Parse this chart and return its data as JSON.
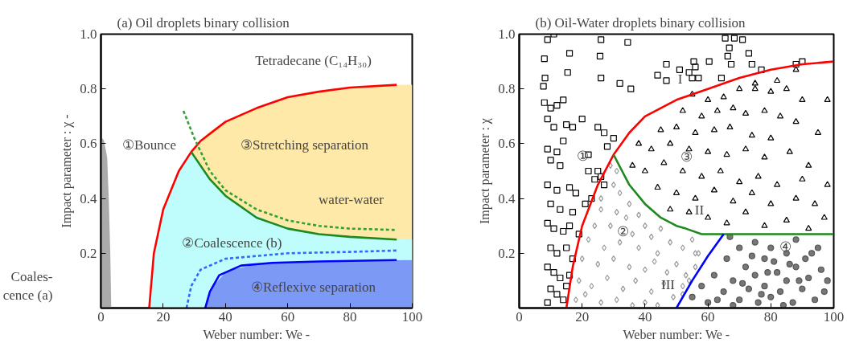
{
  "chart_data": [
    {
      "type": "area",
      "title": "(a) Oil droplets binary collision",
      "xlabel": "Weber number: We -",
      "ylabel": "Impact parameter : χ -",
      "xlim": [
        0,
        100
      ],
      "ylim": [
        0,
        1
      ],
      "xticks": [
        0,
        20,
        40,
        60,
        80,
        100
      ],
      "yticks": [
        0.2,
        0.4,
        0.6,
        0.8,
        {
          "value": 1,
          "label": "1.0"
        }
      ],
      "grid": false,
      "series": [
        {
          "color": "#aaaaaa",
          "x": [
            0,
            0.5,
            1,
            2,
            2.5,
            3,
            3.3
          ],
          "values": [
            0.6,
            0.62,
            0.61,
            0.55,
            0.4,
            0.2,
            0
          ]
        },
        {
          "color": "#ffe9a8",
          "x": [
            28.8,
            32,
            35,
            40,
            50,
            60,
            70,
            80,
            95,
            100
          ],
          "values": [
            0.567,
            0.61,
            0.645,
            0.68,
            0.73,
            0.77,
            0.79,
            0.805,
            0.815,
            0.815
          ]
        },
        {
          "color": "#bffcfc",
          "x": [
            15.5,
            17,
            20,
            25,
            28,
            29.5,
            31,
            33.5,
            37,
            42,
            45,
            55,
            65,
            75,
            87,
            100
          ],
          "values": [
            0,
            0.2,
            0.36,
            0.5,
            0.55,
            0.562,
            0.537,
            0.495,
            0.446,
            0.394,
            0.37,
            0.31,
            0.28,
            0.265,
            0.255,
            0.25
          ]
        },
        {
          "color": "#7b99f5",
          "x": [
            33.5,
            36,
            40,
            42,
            50,
            60,
            65,
            80,
            100
          ],
          "values": [
            0,
            0.08,
            0.13,
            0.14,
            0.16,
            0.167,
            0.168,
            0.172,
            0.175
          ]
        },
        {
          "type": "line",
          "color": "#ff0000",
          "line_style": "solid",
          "x": [
            15.5,
            17,
            20,
            25,
            29,
            32,
            40,
            50,
            60,
            70,
            80,
            95
          ],
          "values": [
            0,
            0.2,
            0.36,
            0.5,
            0.57,
            0.61,
            0.68,
            0.73,
            0.77,
            0.79,
            0.805,
            0.815
          ]
        },
        {
          "type": "line",
          "color": "#1e8a1e",
          "line_style": "solid",
          "x": [
            29,
            35,
            40,
            50,
            60,
            70,
            80,
            95
          ],
          "values": [
            0.57,
            0.47,
            0.41,
            0.33,
            0.29,
            0.27,
            0.26,
            0.25
          ]
        },
        {
          "type": "line",
          "color": "#33a033",
          "line_style": "dashed",
          "x": [
            26.5,
            30,
            35,
            40,
            50,
            60,
            70,
            80,
            95
          ],
          "values": [
            0.72,
            0.62,
            0.5,
            0.43,
            0.36,
            0.32,
            0.3,
            0.29,
            0.285
          ]
        },
        {
          "type": "line",
          "color": "#3366ff",
          "line_style": "dashed",
          "x": [
            27.5,
            29,
            32,
            40,
            50,
            60,
            80,
            95
          ],
          "values": [
            0,
            0.08,
            0.14,
            0.18,
            0.19,
            0.2,
            0.205,
            0.21
          ]
        },
        {
          "type": "line",
          "color": "#0000ff",
          "line_style": "solid",
          "x": [
            33.5,
            35,
            38,
            45,
            55,
            70,
            95
          ],
          "values": [
            0,
            0.06,
            0.12,
            0.155,
            0.165,
            0.17,
            0.175
          ]
        }
      ],
      "annotations": [
        "Tetradecane (C₁₄H₃₀)",
        "①Bounce",
        "③Stretching separation",
        "water-water",
        "②Coalescence (b)",
        "④Reflexive separation",
        "Coales-\ncence (a)"
      ]
    },
    {
      "type": "scatter",
      "title": "(b) Oil-Water droplets binary collision",
      "xlabel": "Weber number: We -",
      "ylabel": "Impact parameter : χ",
      "xlim": [
        0,
        100
      ],
      "ylim": [
        0,
        1
      ],
      "xticks": [
        0,
        20,
        40,
        60,
        80,
        100
      ],
      "yticks": [
        0.2,
        0.4,
        0.6,
        0.8,
        {
          "value": 1,
          "label": "1.0"
        }
      ],
      "grid": false,
      "series": [
        {
          "marker": "square",
          "color": "#000000",
          "x": [
            11,
            9,
            26,
            34.5,
            8,
            16,
            25.7,
            15.4,
            8.2,
            26,
            7.7,
            32,
            35.5,
            65.5,
            68.4,
            71,
            66.8,
            66.3,
            73,
            67.4,
            74,
            60.4,
            55.5,
            56,
            46.8,
            44,
            51,
            54,
            46.8,
            64.3,
            77,
            88,
            90,
            55,
            57,
            8,
            10,
            12,
            14,
            9,
            11,
            15,
            17,
            20,
            25,
            27,
            30,
            28,
            9,
            12,
            14,
            10,
            13,
            22,
            25,
            26,
            9,
            12,
            16,
            18,
            24,
            27,
            10,
            13,
            17,
            21,
            23,
            9,
            11,
            14,
            16,
            19,
            10,
            12,
            15,
            17,
            9,
            11,
            13,
            16,
            10,
            12,
            14,
            9,
            15,
            22
          ],
          "values": [
            1.0,
            0.98,
            0.98,
            0.97,
            0.91,
            0.93,
            0.92,
            0.86,
            0.84,
            0.84,
            0.81,
            0.82,
            0.8,
            0.985,
            0.985,
            0.98,
            0.95,
            0.92,
            0.93,
            0.89,
            0.89,
            0.9,
            0.9,
            0.88,
            0.89,
            0.85,
            0.87,
            0.86,
            0.83,
            0.84,
            0.87,
            0.89,
            0.9,
            0.84,
            0.84,
            0.75,
            0.73,
            0.74,
            0.76,
            0.69,
            0.66,
            0.67,
            0.66,
            0.69,
            0.66,
            0.64,
            0.62,
            0.59,
            0.58,
            0.57,
            0.61,
            0.54,
            0.52,
            0.56,
            0.5,
            0.48,
            0.45,
            0.43,
            0.44,
            0.42,
            0.47,
            0.45,
            0.38,
            0.36,
            0.35,
            0.38,
            0.4,
            0.31,
            0.29,
            0.28,
            0.3,
            0.27,
            0.22,
            0.2,
            0.22,
            0.18,
            0.15,
            0.13,
            0.11,
            0.12,
            0.07,
            0.05,
            0.03,
            0.02,
            0.08,
            0.5
          ]
        },
        {
          "marker": "diamond",
          "color": "#999999",
          "x": [
            29,
            31,
            30,
            32,
            26,
            35,
            26,
            31,
            38,
            24,
            29,
            34,
            36,
            40,
            42,
            45,
            22,
            27,
            32,
            38,
            44,
            48,
            52,
            55,
            57,
            20,
            25,
            30,
            35,
            40,
            43,
            47,
            50,
            53,
            56,
            19,
            23,
            28,
            33,
            37,
            42,
            46,
            49,
            18,
            21,
            26,
            31,
            36,
            40,
            44,
            52,
            52,
            54,
            56
          ],
          "values": [
            0.52,
            0.5,
            0.45,
            0.42,
            0.4,
            0.38,
            0.36,
            0.35,
            0.34,
            0.3,
            0.3,
            0.33,
            0.27,
            0.3,
            0.26,
            0.29,
            0.25,
            0.22,
            0.24,
            0.22,
            0.2,
            0.24,
            0.22,
            0.25,
            0.2,
            0.18,
            0.16,
            0.18,
            0.15,
            0.14,
            0.17,
            0.13,
            0.16,
            0.12,
            0.15,
            0.1,
            0.08,
            0.11,
            0.07,
            0.1,
            0.06,
            0.09,
            0.04,
            0.03,
            0.05,
            0.02,
            0.03,
            0.01,
            0.02,
            0.01,
            0.05,
            0.08,
            0.1,
            0.2
          ]
        },
        {
          "marker": "triangle",
          "color": "#000000",
          "x": [
            55,
            60,
            65,
            70,
            75,
            80,
            85,
            90,
            98,
            52,
            58,
            63,
            68,
            72,
            78,
            83,
            88,
            45,
            50,
            56,
            62,
            67,
            74,
            80,
            95,
            38,
            42,
            48,
            54,
            60,
            66,
            72,
            78,
            86,
            92,
            36,
            40,
            46,
            52,
            58,
            64,
            70,
            76,
            82,
            90,
            98,
            44,
            50,
            56,
            62,
            68,
            74,
            80,
            88,
            94,
            48,
            54,
            60,
            66,
            72,
            78,
            85,
            92,
            97,
            88,
            82,
            75
          ],
          "values": [
            0.78,
            0.76,
            0.77,
            0.8,
            0.8,
            0.79,
            0.8,
            0.76,
            0.76,
            0.72,
            0.7,
            0.72,
            0.73,
            0.71,
            0.72,
            0.7,
            0.68,
            0.65,
            0.66,
            0.64,
            0.65,
            0.66,
            0.63,
            0.62,
            0.64,
            0.6,
            0.58,
            0.6,
            0.58,
            0.57,
            0.56,
            0.58,
            0.55,
            0.57,
            0.52,
            0.52,
            0.5,
            0.53,
            0.5,
            0.48,
            0.5,
            0.46,
            0.48,
            0.45,
            0.47,
            0.45,
            0.44,
            0.42,
            0.4,
            0.43,
            0.39,
            0.42,
            0.38,
            0.4,
            0.38,
            0.36,
            0.35,
            0.33,
            0.31,
            0.35,
            0.3,
            0.32,
            0.29,
            0.33,
            0.87,
            0.83,
            0.82
          ]
        },
        {
          "marker": "circle",
          "color": "#555555",
          "x": [
            55,
            58,
            60,
            62,
            65,
            66,
            68,
            70,
            70,
            72,
            73,
            75,
            75,
            76,
            78,
            78,
            80,
            80,
            82,
            83,
            85,
            85,
            87,
            88,
            88,
            90,
            91,
            92,
            94,
            95,
            96,
            97,
            67,
            71,
            74,
            77,
            79,
            81,
            84,
            86,
            89,
            93,
            68,
            63,
            98
          ],
          "values": [
            0.04,
            0.08,
            0.02,
            0.12,
            0.06,
            0.18,
            0.1,
            0.03,
            0.22,
            0.15,
            0.07,
            0.24,
            0.12,
            0.02,
            0.18,
            0.08,
            0.04,
            0.22,
            0.13,
            0.06,
            0.2,
            0.1,
            0.02,
            0.15,
            0.25,
            0.07,
            0.18,
            0.11,
            0.03,
            0.22,
            0.14,
            0.06,
            0.26,
            0.09,
            0.19,
            0.05,
            0.13,
            0.17,
            0.01,
            0.16,
            0.1,
            0.2,
            0.01,
            0.03,
            0.1
          ]
        },
        {
          "type": "line",
          "color": "#ff0000",
          "line_style": "solid",
          "x": [
            15,
            17,
            20,
            25,
            30,
            35,
            40,
            50,
            60,
            70,
            80,
            90,
            100
          ],
          "values": [
            0,
            0.15,
            0.3,
            0.45,
            0.56,
            0.64,
            0.7,
            0.76,
            0.8,
            0.84,
            0.87,
            0.89,
            0.9
          ]
        },
        {
          "type": "line",
          "color": "#1e8a1e",
          "line_style": "solid",
          "x": [
            30,
            35,
            40,
            45,
            50,
            53,
            58,
            100
          ],
          "values": [
            0.56,
            0.45,
            0.38,
            0.33,
            0.3,
            0.29,
            0.27,
            0.27
          ]
        },
        {
          "type": "line",
          "color": "#0000ff",
          "line_style": "solid",
          "x": [
            50,
            55,
            60,
            65
          ],
          "values": [
            0,
            0.1,
            0.19,
            0.27
          ]
        }
      ],
      "annotations": [
        "①",
        "③",
        "②",
        "④",
        "I",
        "II",
        "III"
      ]
    }
  ]
}
